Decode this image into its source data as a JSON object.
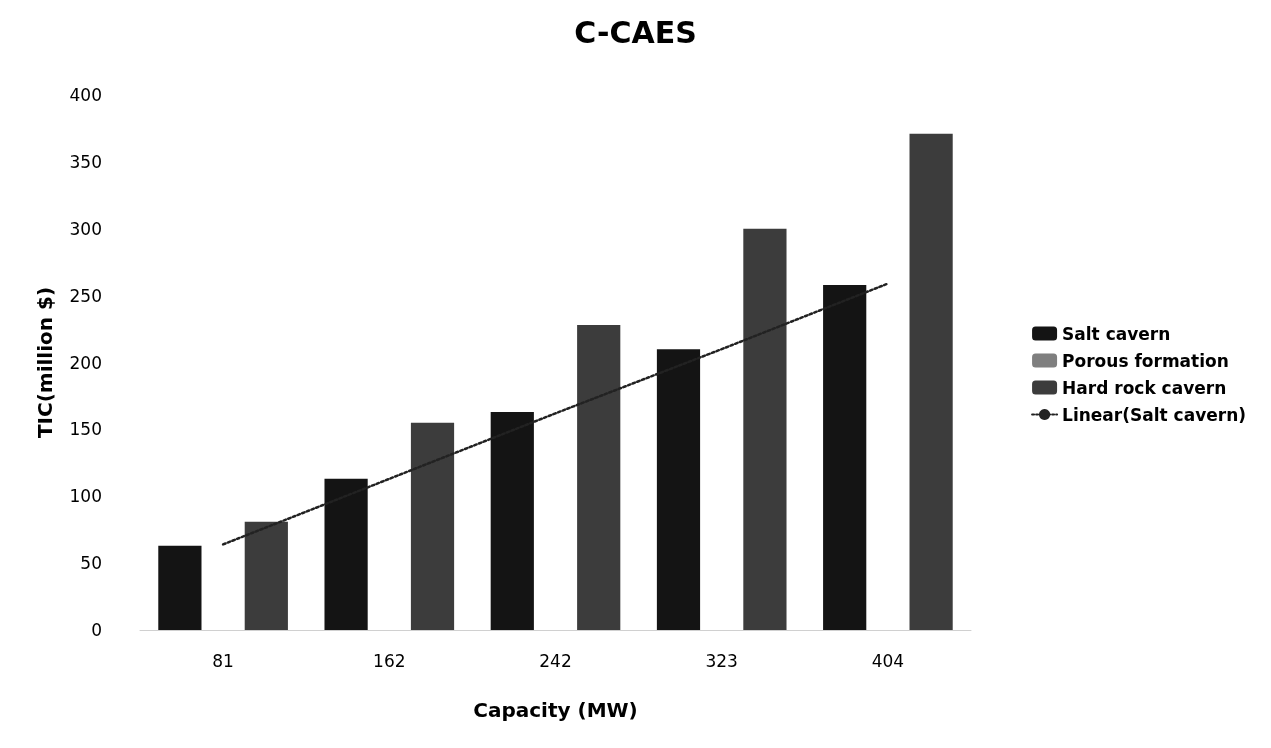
{
  "chart_data": {
    "type": "bar",
    "title": "C-CAES",
    "xlabel": "Capacity (MW)",
    "ylabel": "TIC(million $)",
    "categories": [
      "81",
      "162",
      "242",
      "323",
      "404"
    ],
    "series": [
      {
        "name": "Salt cavern",
        "color": "#141414",
        "values": [
          63,
          113,
          163,
          210,
          258
        ]
      },
      {
        "name": "Porous formation",
        "color": "#7f7f7f",
        "values": [
          null,
          null,
          null,
          null,
          null
        ]
      },
      {
        "name": "Hard rock cavern",
        "color": "#3c3c3c",
        "values": [
          81,
          155,
          228,
          300,
          371
        ]
      },
      {
        "name": "Linear(Salt cavern)",
        "type": "line",
        "color": "#222222",
        "line_style": "dotted",
        "marker": "none",
        "values": [
          64,
          113,
          162,
          210,
          259
        ]
      }
    ],
    "ylim": [
      0,
      400
    ],
    "yticks": [
      0,
      50,
      100,
      150,
      200,
      250,
      300,
      350,
      400
    ],
    "grid": false,
    "legend": "right"
  }
}
